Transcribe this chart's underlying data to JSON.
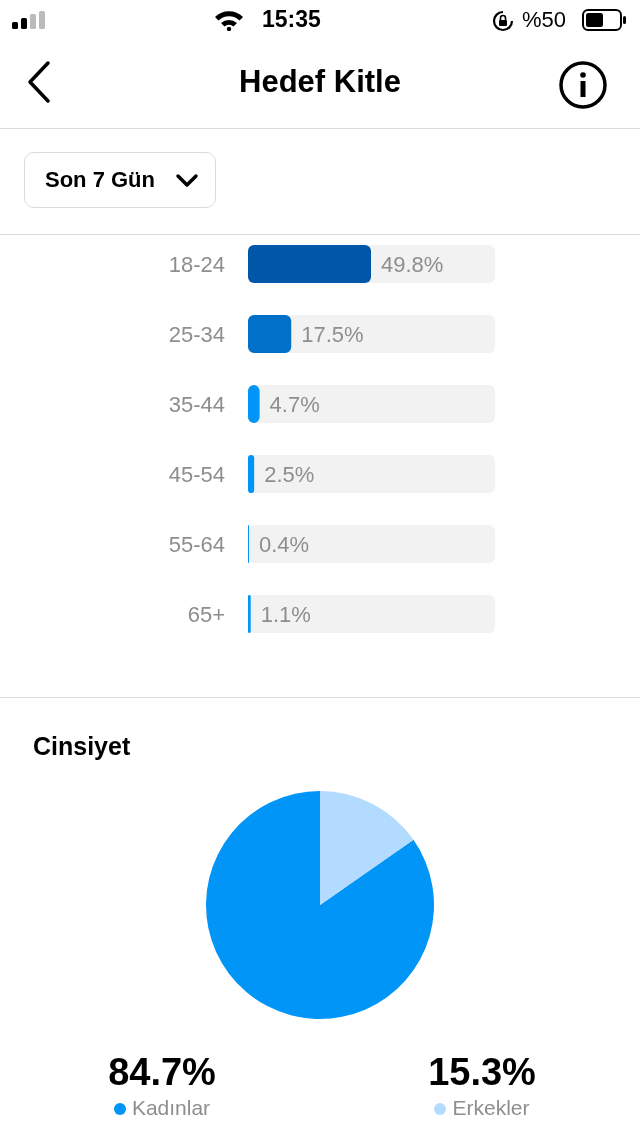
{
  "chart_data": [
    {
      "type": "bar",
      "title": "Hedef Kitle",
      "subtitle": "Son 7 Gün",
      "annotations": [
        "15:35",
        "%50"
      ],
      "orientation": "horizontal",
      "categories": [
        "18-24",
        "25-34",
        "35-44",
        "45-54",
        "55-64",
        "65+"
      ],
      "values": [
        49.8,
        17.5,
        4.7,
        2.5,
        0.4,
        1.1
      ],
      "colors": [
        "#0057a8",
        "#0070c9",
        "#0095f6",
        "#0095f6",
        "#0095f6",
        "#0095f6"
      ],
      "xlim": [
        0,
        100
      ],
      "tick_labels": "y",
      "value_labels": [
        "49.8%",
        "17.5%",
        "4.7%",
        "2.5%",
        "0.4%",
        "1.1%"
      ]
    },
    {
      "type": "pie",
      "title": "Cinsiyet",
      "categories": [
        "Kadınlar",
        "Erkekler"
      ],
      "values": [
        84.7,
        15.3
      ],
      "colors": [
        "#0095f6",
        "#b3dbff"
      ],
      "legend": "bottom",
      "value_labels": [
        "84.7%",
        "15.3%"
      ]
    }
  ]
}
